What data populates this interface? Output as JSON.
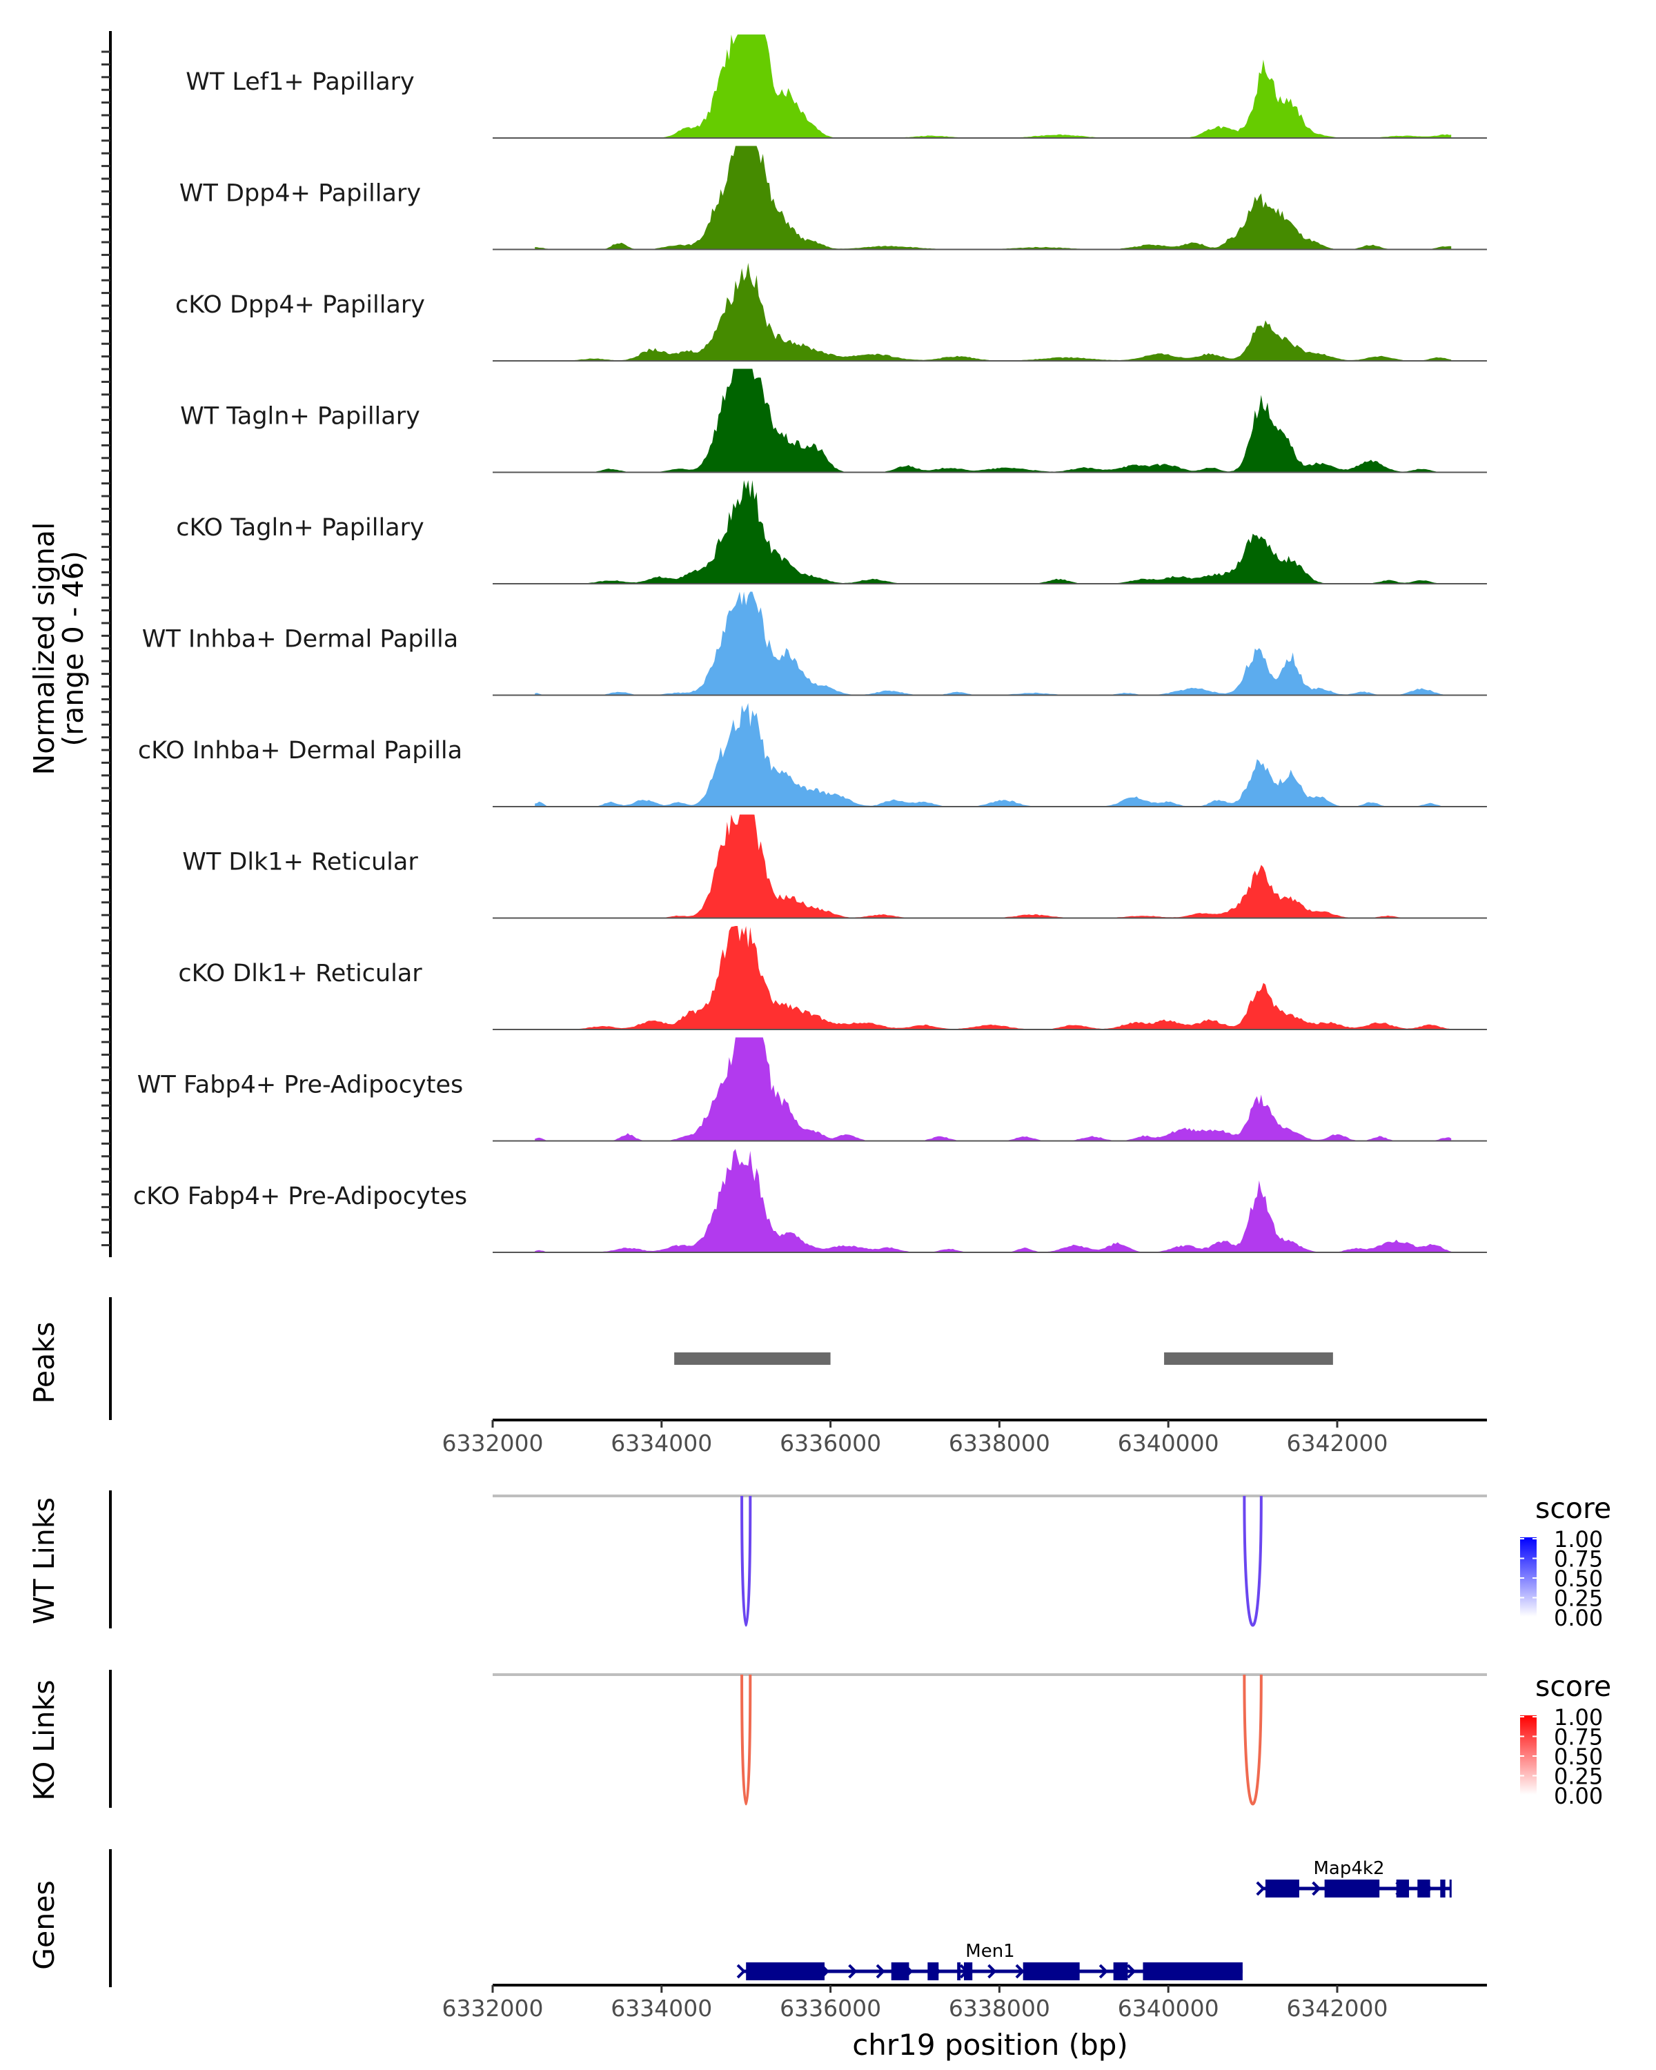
{
  "chart_data": {
    "type": "area",
    "title": "",
    "region": {
      "chrom": "chr19",
      "start": 6332000,
      "end": 6343800
    },
    "xlabel": "chr19 position (bp)",
    "xticks": [
      6332000,
      6334000,
      6336000,
      6338000,
      6340000,
      6342000
    ],
    "xtick_labels": [
      "6332000",
      "6334000",
      "6336000",
      "6338000",
      "6340000",
      "6342000"
    ],
    "ylabel_line1": "Normalized signal",
    "ylabel_line2": "(range 0 - 46)",
    "ylim": [
      0,
      46
    ],
    "tracks": [
      {
        "name": "WT Lef1+ Papillary",
        "color": "#66CC00",
        "peaks": [
          [
            6334300,
            4,
            120
          ],
          [
            6334700,
            8,
            150
          ],
          [
            6334950,
            42,
            200
          ],
          [
            6335100,
            44,
            120
          ],
          [
            6335480,
            19,
            140
          ],
          [
            6335750,
            5,
            120
          ],
          [
            6337200,
            1,
            200
          ],
          [
            6338700,
            1.5,
            250
          ],
          [
            6340600,
            5,
            150
          ],
          [
            6340950,
            3,
            100
          ],
          [
            6341150,
            31,
            110
          ],
          [
            6341450,
            15,
            110
          ],
          [
            6341700,
            2,
            150
          ],
          [
            6342800,
            1,
            200
          ],
          [
            6343300,
            1.5,
            120
          ]
        ]
      },
      {
        "name": "WT Dpp4+ Papillary",
        "color": "#458B00",
        "peaks": [
          [
            6332500,
            1,
            100
          ],
          [
            6333500,
            3,
            80
          ],
          [
            6334200,
            2,
            150
          ],
          [
            6334650,
            6,
            120
          ],
          [
            6334900,
            32,
            200
          ],
          [
            6335080,
            38,
            130
          ],
          [
            6335420,
            13,
            150
          ],
          [
            6335800,
            3,
            120
          ],
          [
            6336700,
            1.5,
            300
          ],
          [
            6338500,
            1,
            300
          ],
          [
            6339800,
            2,
            200
          ],
          [
            6340300,
            3,
            120
          ],
          [
            6340750,
            4,
            100
          ],
          [
            6341050,
            20,
            130
          ],
          [
            6341350,
            14,
            150
          ],
          [
            6341700,
            3,
            120
          ],
          [
            6342400,
            2,
            100
          ],
          [
            6343300,
            1.5,
            100
          ]
        ]
      },
      {
        "name": "cKO Dpp4+ Papillary",
        "color": "#458B00",
        "peaks": [
          [
            6333200,
            1,
            150
          ],
          [
            6333900,
            5,
            150
          ],
          [
            6334300,
            4,
            120
          ],
          [
            6334800,
            22,
            170
          ],
          [
            6335050,
            31,
            130
          ],
          [
            6335400,
            9,
            200
          ],
          [
            6335800,
            4,
            200
          ],
          [
            6336500,
            3,
            250
          ],
          [
            6337500,
            2,
            200
          ],
          [
            6338800,
            1.5,
            300
          ],
          [
            6339900,
            3,
            200
          ],
          [
            6340500,
            3,
            150
          ],
          [
            6341100,
            15,
            130
          ],
          [
            6341400,
            8,
            150
          ],
          [
            6341800,
            3,
            150
          ],
          [
            6342500,
            2,
            150
          ],
          [
            6343200,
            1.5,
            100
          ]
        ]
      },
      {
        "name": "WT Tagln+ Papillary",
        "color": "#006400",
        "peaks": [
          [
            6333400,
            1.5,
            100
          ],
          [
            6334200,
            1.5,
            120
          ],
          [
            6334650,
            6,
            120
          ],
          [
            6334900,
            44,
            170
          ],
          [
            6335150,
            22,
            150
          ],
          [
            6335500,
            13,
            200
          ],
          [
            6335850,
            8,
            120
          ],
          [
            6336900,
            3,
            120
          ],
          [
            6337400,
            2,
            150
          ],
          [
            6338100,
            2,
            250
          ],
          [
            6339000,
            2,
            150
          ],
          [
            6339600,
            3,
            200
          ],
          [
            6340000,
            3,
            150
          ],
          [
            6340500,
            2,
            100
          ],
          [
            6341100,
            30,
            120
          ],
          [
            6341380,
            14,
            110
          ],
          [
            6341800,
            4,
            150
          ],
          [
            6342400,
            5,
            150
          ],
          [
            6343000,
            1.5,
            100
          ]
        ]
      },
      {
        "name": "cKO Tagln+ Papillary",
        "color": "#006400",
        "peaks": [
          [
            6333400,
            1.5,
            150
          ],
          [
            6334000,
            3,
            150
          ],
          [
            6334400,
            5,
            120
          ],
          [
            6334800,
            24,
            150
          ],
          [
            6335050,
            34,
            120
          ],
          [
            6335350,
            12,
            180
          ],
          [
            6335800,
            3,
            150
          ],
          [
            6336500,
            2,
            150
          ],
          [
            6338700,
            2,
            120
          ],
          [
            6339700,
            2,
            150
          ],
          [
            6340100,
            3,
            150
          ],
          [
            6340600,
            4,
            200
          ],
          [
            6341050,
            22,
            150
          ],
          [
            6341450,
            10,
            150
          ],
          [
            6342600,
            1.5,
            100
          ],
          [
            6343000,
            1.5,
            100
          ]
        ]
      },
      {
        "name": "WT Inhba+ Dermal Papilla",
        "color": "#5CACEE",
        "peaks": [
          [
            6332500,
            1,
            50
          ],
          [
            6333500,
            1.5,
            100
          ],
          [
            6334200,
            1,
            150
          ],
          [
            6334650,
            3,
            150
          ],
          [
            6334880,
            36,
            180
          ],
          [
            6335120,
            26,
            130
          ],
          [
            6335500,
            18,
            150
          ],
          [
            6335900,
            4,
            150
          ],
          [
            6336700,
            2,
            150
          ],
          [
            6337500,
            1.5,
            100
          ],
          [
            6338400,
            1,
            200
          ],
          [
            6339500,
            1,
            100
          ],
          [
            6340300,
            3,
            200
          ],
          [
            6341050,
            19,
            130
          ],
          [
            6341450,
            17,
            100
          ],
          [
            6341800,
            3,
            120
          ],
          [
            6342300,
            1.5,
            100
          ],
          [
            6343000,
            3,
            120
          ]
        ]
      },
      {
        "name": "cKO Inhba+ Dermal Papilla",
        "color": "#5CACEE",
        "peaks": [
          [
            6332550,
            2,
            50
          ],
          [
            6333400,
            2,
            80
          ],
          [
            6333800,
            3,
            120
          ],
          [
            6334200,
            2,
            80
          ],
          [
            6334650,
            3,
            100
          ],
          [
            6334850,
            30,
            170
          ],
          [
            6335100,
            28,
            130
          ],
          [
            6335450,
            13,
            150
          ],
          [
            6335800,
            6,
            150
          ],
          [
            6336100,
            4,
            150
          ],
          [
            6336750,
            3,
            120
          ],
          [
            6337100,
            2,
            120
          ],
          [
            6338050,
            3,
            150
          ],
          [
            6339600,
            4,
            150
          ],
          [
            6340000,
            2,
            100
          ],
          [
            6340600,
            3,
            100
          ],
          [
            6341080,
            19,
            130
          ],
          [
            6341450,
            14,
            120
          ],
          [
            6341800,
            4,
            100
          ],
          [
            6342400,
            2,
            80
          ],
          [
            6343100,
            1.5,
            80
          ]
        ]
      },
      {
        "name": "WT Dlk1+ Reticular",
        "color": "#FF3030",
        "peaks": [
          [
            6334200,
            1,
            100
          ],
          [
            6334650,
            6,
            120
          ],
          [
            6334850,
            37,
            160
          ],
          [
            6335080,
            32,
            130
          ],
          [
            6335500,
            9,
            180
          ],
          [
            6335900,
            3,
            150
          ],
          [
            6336600,
            1.5,
            150
          ],
          [
            6338400,
            1.5,
            200
          ],
          [
            6339700,
            1,
            200
          ],
          [
            6340400,
            2,
            150
          ],
          [
            6340850,
            4,
            150
          ],
          [
            6341100,
            20,
            130
          ],
          [
            6341450,
            8,
            120
          ],
          [
            6341800,
            3,
            150
          ],
          [
            6342600,
            1,
            100
          ]
        ]
      },
      {
        "name": "cKO Dlk1+ Reticular",
        "color": "#FF3030",
        "peaks": [
          [
            6333300,
            1.5,
            150
          ],
          [
            6333900,
            4,
            150
          ],
          [
            6334350,
            7,
            120
          ],
          [
            6334800,
            35,
            160
          ],
          [
            6335050,
            28,
            130
          ],
          [
            6335400,
            10,
            200
          ],
          [
            6335800,
            5,
            200
          ],
          [
            6336400,
            3,
            200
          ],
          [
            6337100,
            2,
            150
          ],
          [
            6337900,
            2,
            200
          ],
          [
            6338900,
            2,
            150
          ],
          [
            6339600,
            3,
            150
          ],
          [
            6340000,
            4,
            150
          ],
          [
            6340500,
            4,
            150
          ],
          [
            6341100,
            18,
            130
          ],
          [
            6341450,
            6,
            150
          ],
          [
            6341900,
            3,
            150
          ],
          [
            6342500,
            3,
            150
          ],
          [
            6343100,
            2,
            120
          ]
        ]
      },
      {
        "name": "WT Fabp4+ Pre-Adipocytes",
        "color": "#B23AEE",
        "peaks": [
          [
            6332550,
            1.5,
            50
          ],
          [
            6333600,
            3,
            80
          ],
          [
            6334300,
            2,
            100
          ],
          [
            6334600,
            9,
            120
          ],
          [
            6334900,
            38,
            170
          ],
          [
            6335120,
            42,
            130
          ],
          [
            6335450,
            15,
            130
          ],
          [
            6335800,
            4,
            120
          ],
          [
            6336200,
            3,
            100
          ],
          [
            6337300,
            2,
            100
          ],
          [
            6338300,
            2,
            100
          ],
          [
            6339100,
            2,
            120
          ],
          [
            6339700,
            2,
            100
          ],
          [
            6340200,
            5,
            200
          ],
          [
            6340600,
            4,
            150
          ],
          [
            6341080,
            18,
            120
          ],
          [
            6341400,
            5,
            150
          ],
          [
            6342000,
            3,
            100
          ],
          [
            6342500,
            2,
            80
          ],
          [
            6343300,
            1.5,
            80
          ]
        ]
      },
      {
        "name": "cKO Fabp4+ Pre-Adipocytes",
        "color": "#B23AEE",
        "peaks": [
          [
            6332550,
            1,
            50
          ],
          [
            6333600,
            2,
            150
          ],
          [
            6334200,
            3,
            150
          ],
          [
            6334650,
            8,
            150
          ],
          [
            6334850,
            33,
            150
          ],
          [
            6335080,
            28,
            130
          ],
          [
            6335500,
            8,
            180
          ],
          [
            6336200,
            3,
            200
          ],
          [
            6336700,
            2,
            120
          ],
          [
            6337400,
            1.5,
            100
          ],
          [
            6338300,
            2,
            80
          ],
          [
            6338900,
            3,
            150
          ],
          [
            6339400,
            4,
            120
          ],
          [
            6340200,
            3,
            150
          ],
          [
            6340650,
            5,
            120
          ],
          [
            6341080,
            28,
            110
          ],
          [
            6341400,
            5,
            150
          ],
          [
            6342200,
            1.5,
            100
          ],
          [
            6342700,
            5,
            200
          ],
          [
            6343150,
            3,
            100
          ]
        ]
      }
    ],
    "peaks_track": {
      "label": "Peaks",
      "color": "#696969",
      "ranges": [
        [
          6334150,
          6336000
        ],
        [
          6339950,
          6341950
        ]
      ]
    },
    "links": [
      {
        "label": "WT Links",
        "color_low": "#FFFFFF",
        "color_high": "#0000FF",
        "line_color": "#6A46F0",
        "arcs": [
          {
            "start": 6334950,
            "end": 6335050,
            "score": 0.7
          },
          {
            "start": 6340900,
            "end": 6341100,
            "score": 0.6
          }
        ],
        "legend": {
          "title": "score",
          "ticks": [
            "1.00",
            "0.75",
            "0.50",
            "0.25",
            "0.00"
          ]
        }
      },
      {
        "label": "KO Links",
        "color_low": "#FFFFFF",
        "color_high": "#FF0000",
        "line_color": "#F06A50",
        "arcs": [
          {
            "start": 6334950,
            "end": 6335050,
            "score": 0.7
          },
          {
            "start": 6340900,
            "end": 6341100,
            "score": 0.7
          }
        ],
        "legend": {
          "title": "score",
          "ticks": [
            "1.00",
            "0.75",
            "0.50",
            "0.25",
            "0.00"
          ]
        }
      }
    ],
    "genes": {
      "label": "Genes",
      "color": "#00008B",
      "items": [
        {
          "name": "Map4k2",
          "start": 6341100,
          "end": 6343350,
          "strand": "+",
          "exons": [
            [
              6341150,
              6341550
            ],
            [
              6341850,
              6342500
            ],
            [
              6342700,
              6342850
            ],
            [
              6342950,
              6343100
            ],
            [
              6343220,
              6343280
            ],
            [
              6343330,
              6343350
            ]
          ]
        },
        {
          "name": "Men1",
          "start": 6334950,
          "end": 6340880,
          "strand": "+",
          "exons": [
            [
              6335000,
              6335930
            ],
            [
              6336720,
              6336930
            ],
            [
              6337150,
              6337280
            ],
            [
              6337500,
              6337540
            ],
            [
              6337580,
              6337680
            ],
            [
              6338280,
              6338950
            ],
            [
              6339350,
              6339520
            ],
            [
              6339700,
              6340880
            ]
          ]
        }
      ]
    }
  }
}
